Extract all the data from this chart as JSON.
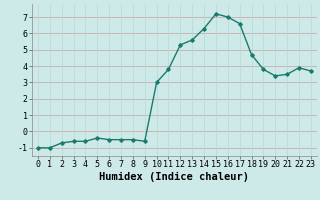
{
  "x": [
    0,
    1,
    2,
    3,
    4,
    5,
    6,
    7,
    8,
    9,
    10,
    11,
    12,
    13,
    14,
    15,
    16,
    17,
    18,
    19,
    20,
    21,
    22,
    23
  ],
  "y": [
    -1.0,
    -1.0,
    -0.7,
    -0.6,
    -0.6,
    -0.4,
    -0.5,
    -0.5,
    -0.5,
    -0.6,
    3.0,
    3.8,
    5.3,
    5.6,
    6.3,
    7.2,
    7.0,
    6.6,
    4.7,
    3.8,
    3.4,
    3.5,
    3.9,
    3.7
  ],
  "xlabel": "Humidex (Indice chaleur)",
  "xlim": [
    -0.5,
    23.5
  ],
  "ylim": [
    -1.5,
    7.8
  ],
  "yticks": [
    -1,
    0,
    1,
    2,
    3,
    4,
    5,
    6,
    7
  ],
  "xticks": [
    0,
    1,
    2,
    3,
    4,
    5,
    6,
    7,
    8,
    9,
    10,
    11,
    12,
    13,
    14,
    15,
    16,
    17,
    18,
    19,
    20,
    21,
    22,
    23
  ],
  "line_color": "#1a7a6e",
  "marker": "D",
  "marker_size": 1.8,
  "bg_color": "#ceeae8",
  "grid_color_x": "#c8a0a0",
  "grid_color_y": "#b8d8d4",
  "xlabel_fontsize": 7.5,
  "tick_fontsize": 6.0,
  "line_width": 1.0
}
